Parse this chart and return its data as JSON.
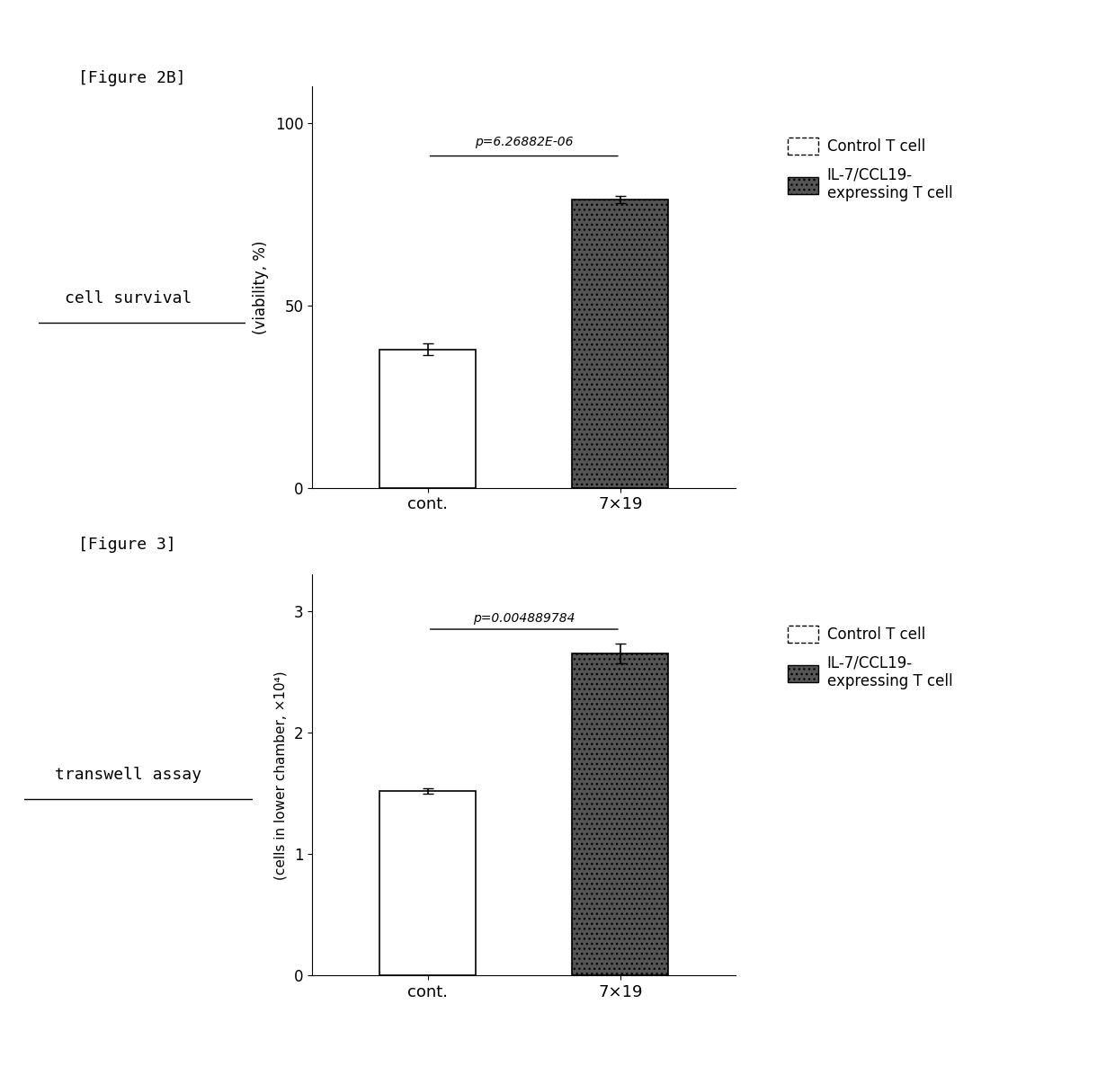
{
  "fig2b_label": "[Figure 2B]",
  "fig3_label": "[Figure 3]",
  "fig2b_title_left": "cell survival",
  "fig3_title_left": "transwell assay",
  "fig2b_ylabel": "(viability, %)",
  "fig3_ylabel": "(cells in lower chamber, ×10⁴)",
  "fig2b_categories": [
    "cont.",
    "7×19"
  ],
  "fig3_categories": [
    "cont.",
    "7×19"
  ],
  "fig2b_values": [
    38.0,
    79.0
  ],
  "fig3_values": [
    1.52,
    2.65
  ],
  "fig2b_errors": [
    1.5,
    1.0
  ],
  "fig3_errors": [
    0.02,
    0.08
  ],
  "fig2b_ylim": [
    0,
    110
  ],
  "fig3_ylim": [
    0,
    3.3
  ],
  "fig2b_yticks": [
    0,
    50,
    100
  ],
  "fig3_yticks": [
    0,
    1,
    2,
    3
  ],
  "fig2b_pvalue": "p=6.26882E-06",
  "fig3_pvalue": "p=0.004889784",
  "bar_color_white": "white",
  "bar_color_dark": "#555555",
  "bar_edgecolor": "black",
  "legend_label_1": "Control T cell",
  "legend_label_2": "IL-7/CCL19-\nexpressing T cell",
  "bg_color": "white",
  "font_color": "black",
  "bar_width": 0.5
}
